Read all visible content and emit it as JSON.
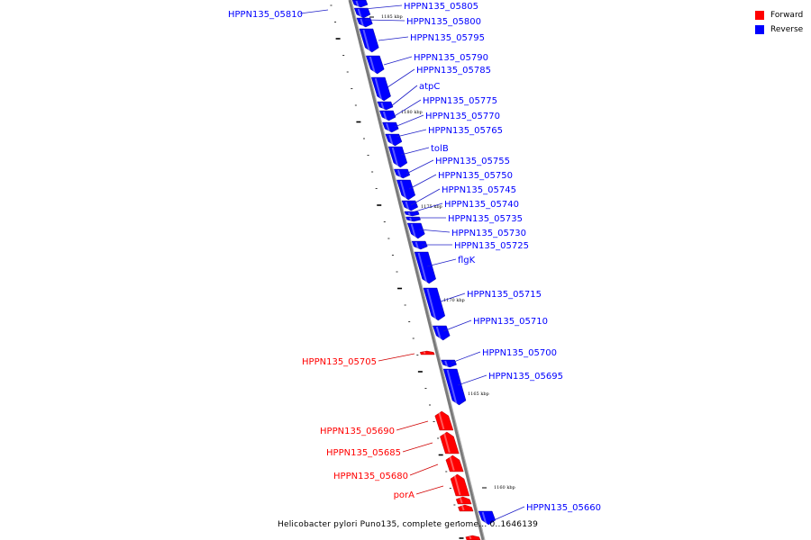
{
  "caption": "Helicobacter pylori Puno135, complete genome... 0..1646139",
  "legend": {
    "forward_label": "Forward",
    "reverse_label": "Reverse",
    "forward_color": "#ff0000",
    "reverse_color": "#0000ff"
  },
  "scale_labels": [
    "1185 kbp",
    "1180 kbp",
    "1175 kbp",
    "1170 kbp",
    "1165 kbp",
    "1160 kbp"
  ],
  "genes": [
    {
      "name": "HPPN135_05810",
      "strand": "reverse"
    },
    {
      "name": "HPPN135_05805",
      "strand": "reverse"
    },
    {
      "name": "HPPN135_05800",
      "strand": "reverse"
    },
    {
      "name": "HPPN135_05795",
      "strand": "reverse"
    },
    {
      "name": "HPPN135_05790",
      "strand": "reverse"
    },
    {
      "name": "HPPN135_05785",
      "strand": "reverse"
    },
    {
      "name": "atpC",
      "strand": "reverse"
    },
    {
      "name": "HPPN135_05775",
      "strand": "reverse"
    },
    {
      "name": "HPPN135_05770",
      "strand": "reverse"
    },
    {
      "name": "HPPN135_05765",
      "strand": "reverse"
    },
    {
      "name": "tolB",
      "strand": "reverse"
    },
    {
      "name": "HPPN135_05755",
      "strand": "reverse"
    },
    {
      "name": "HPPN135_05750",
      "strand": "reverse"
    },
    {
      "name": "HPPN135_05745",
      "strand": "reverse"
    },
    {
      "name": "HPPN135_05740",
      "strand": "reverse"
    },
    {
      "name": "HPPN135_05735",
      "strand": "reverse"
    },
    {
      "name": "HPPN135_05730",
      "strand": "reverse"
    },
    {
      "name": "HPPN135_05725",
      "strand": "reverse"
    },
    {
      "name": "flgK",
      "strand": "reverse"
    },
    {
      "name": "HPPN135_05715",
      "strand": "reverse"
    },
    {
      "name": "HPPN135_05710",
      "strand": "reverse"
    },
    {
      "name": "HPPN135_05705",
      "strand": "forward"
    },
    {
      "name": "HPPN135_05700",
      "strand": "reverse"
    },
    {
      "name": "HPPN135_05695",
      "strand": "reverse"
    },
    {
      "name": "HPPN135_05690",
      "strand": "forward"
    },
    {
      "name": "HPPN135_05685",
      "strand": "forward"
    },
    {
      "name": "HPPN135_05680",
      "strand": "forward"
    },
    {
      "name": "porA",
      "strand": "forward"
    },
    {
      "name": "HPPN135_05660",
      "strand": "reverse"
    }
  ]
}
